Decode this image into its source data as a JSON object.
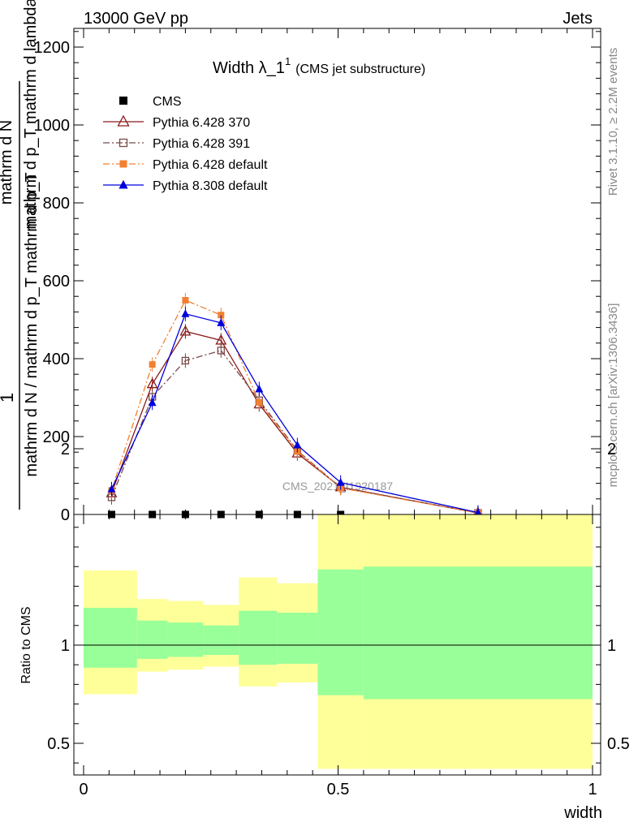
{
  "header": {
    "left": "13000 GeV pp",
    "right": "Jets"
  },
  "side_labels": {
    "rivet": "Rivet 3.1.10, ≥ 2.2M events",
    "mcplots": "mcplots.cern.ch [arXiv:1306.3436]"
  },
  "watermark": "CMS_2021_I1920187",
  "colors": {
    "cms": "#000000",
    "p370": "#8b1a1a",
    "p391": "#7a4a4a",
    "p6def": "#f28030",
    "p8def": "#0000dd",
    "band_yellow": "#ffff99",
    "band_green": "#99ff99"
  },
  "chart_data": [
    {
      "type": "line",
      "title": "Width λ_1¹ (CMS jet substructure)",
      "title_main": "Width λ_1",
      "title_sup": "1",
      "title_sub": "(CMS jet substructure)",
      "ylabel_lines": [
        "1",
        "mathrm d N / mathrm d p_T mathrm d p_T",
        "mathrm d N",
        "mathrm d p_T mathrm d lambda"
      ],
      "ylim": [
        0,
        1250
      ],
      "yticks": [
        0,
        200,
        400,
        600,
        800,
        1000,
        1200
      ],
      "ytick_labels": [
        "0",
        "200",
        "400",
        "600",
        "800",
        "1000",
        "1200"
      ],
      "xlim": [
        0,
        1
      ],
      "series": [
        {
          "name": "CMS",
          "marker": "filled-square",
          "line": "none",
          "x": [
            0.055,
            0.135,
            0.2,
            0.27,
            0.345,
            0.42,
            0.505
          ],
          "y": [
            0,
            0,
            0,
            0,
            0,
            0,
            0
          ]
        },
        {
          "name": "Pythia 6.428 370",
          "marker": "open-triangle",
          "line": "solid",
          "x": [
            0.055,
            0.135,
            0.2,
            0.27,
            0.345,
            0.42,
            0.505,
            0.775
          ],
          "y": [
            55,
            335,
            470,
            447,
            283,
            157,
            70,
            4
          ]
        },
        {
          "name": "Pythia 6.428 391",
          "marker": "open-square",
          "line": "dashdot",
          "x": [
            0.055,
            0.135,
            0.2,
            0.27,
            0.345,
            0.42,
            0.505,
            0.775
          ],
          "y": [
            44,
            302,
            395,
            421,
            293,
            164,
            69,
            4
          ]
        },
        {
          "name": "Pythia 6.428 default",
          "marker": "filled-square",
          "line": "dashdot",
          "x": [
            0.055,
            0.135,
            0.2,
            0.27,
            0.345,
            0.42,
            0.505,
            0.775
          ],
          "y": [
            62,
            385,
            550,
            512,
            288,
            162,
            68,
            4
          ]
        },
        {
          "name": "Pythia 8.308 default",
          "marker": "filled-triangle",
          "line": "solid",
          "x": [
            0.055,
            0.135,
            0.2,
            0.27,
            0.345,
            0.42,
            0.505,
            0.775
          ],
          "y": [
            65,
            287,
            515,
            492,
            322,
            178,
            82,
            5
          ]
        }
      ]
    },
    {
      "type": "area",
      "ylabel": "Ratio to CMS",
      "xlabel": "width",
      "xlim": [
        0,
        1
      ],
      "ylim": [
        0.37,
        2.3
      ],
      "xticks": [
        0,
        0.5,
        1
      ],
      "xtick_labels": [
        "0",
        "0.5",
        "1"
      ],
      "yticks": [
        0.5,
        1,
        2
      ],
      "ytick_labels": [
        "0.5",
        "1",
        "2"
      ],
      "bins": [
        {
          "x0": 0.0,
          "x1": 0.105,
          "yellow": [
            0.75,
            1.38
          ],
          "green": [
            0.885,
            1.19
          ]
        },
        {
          "x0": 0.105,
          "x1": 0.165,
          "yellow": [
            0.865,
            1.235
          ],
          "green": [
            0.93,
            1.125
          ]
        },
        {
          "x0": 0.165,
          "x1": 0.235,
          "yellow": [
            0.875,
            1.225
          ],
          "green": [
            0.94,
            1.115
          ]
        },
        {
          "x0": 0.235,
          "x1": 0.305,
          "yellow": [
            0.89,
            1.205
          ],
          "green": [
            0.95,
            1.1
          ]
        },
        {
          "x0": 0.305,
          "x1": 0.38,
          "yellow": [
            0.79,
            1.345
          ],
          "green": [
            0.9,
            1.175
          ]
        },
        {
          "x0": 0.38,
          "x1": 0.46,
          "yellow": [
            0.81,
            1.315
          ],
          "green": [
            0.905,
            1.165
          ]
        },
        {
          "x0": 0.46,
          "x1": 0.55,
          "yellow": [
            0.37,
            1.68
          ],
          "green": [
            0.745,
            1.385
          ]
        },
        {
          "x0": 0.55,
          "x1": 1.0,
          "yellow": [
            0.37,
            1.71
          ],
          "green": [
            0.725,
            1.4
          ]
        }
      ]
    }
  ]
}
